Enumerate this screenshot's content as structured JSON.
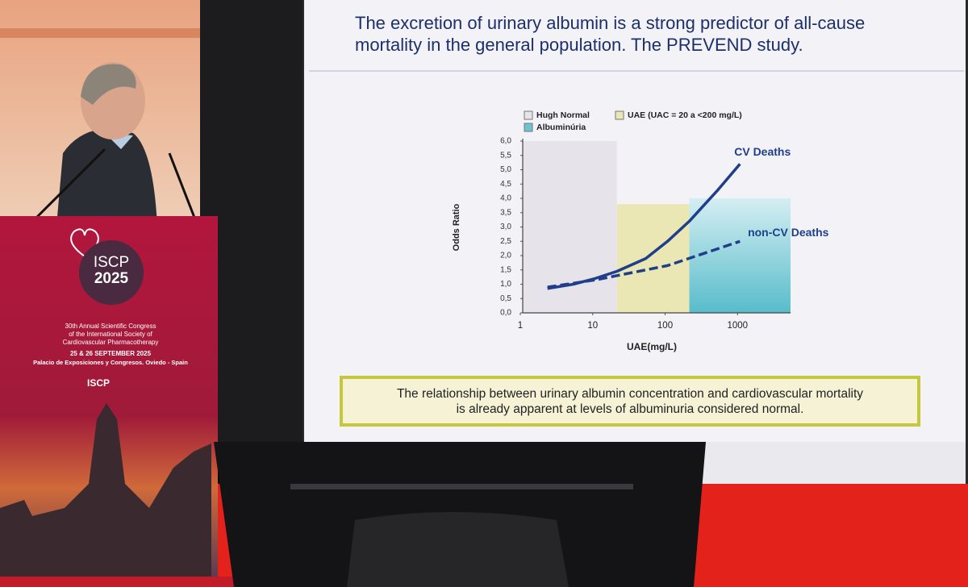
{
  "slide": {
    "title_lines": [
      "The excretion of urinary albumin is a strong predictor of all-cause",
      "mortality in the general population. The PREVEND study."
    ],
    "note_lines": [
      "The relationship between urinary albumin concentration and cardiovascular mortality",
      "is already apparent at levels of albuminuria considered normal."
    ]
  },
  "chart_data": {
    "type": "line",
    "x_label": "UAE(mg/L)",
    "y_label": "Odds Ratio",
    "xscale": "log",
    "xlim": [
      1,
      5000
    ],
    "xticks": [
      1,
      10,
      100,
      1000
    ],
    "ylim": [
      0,
      6
    ],
    "yticks": [
      {
        "value": 0,
        "label": "0,0"
      },
      {
        "value": 0.5,
        "label": "0,5"
      },
      {
        "value": 1,
        "label": "1,0"
      },
      {
        "value": 1.5,
        "label": "1,5"
      },
      {
        "value": 2,
        "label": "2,0"
      },
      {
        "value": 2.5,
        "label": "2,5"
      },
      {
        "value": 3,
        "label": "3,0"
      },
      {
        "value": 3.5,
        "label": "3,5"
      },
      {
        "value": 4,
        "label": "4,0"
      },
      {
        "value": 4.5,
        "label": "4,5"
      },
      {
        "value": 5,
        "label": "5,0"
      },
      {
        "value": 5.5,
        "label": "5,5"
      },
      {
        "value": 6,
        "label": "6,0"
      }
    ],
    "bands": [
      {
        "name": "Hugh Normal",
        "color": "#e6e3ea",
        "x": [
          1,
          20
        ],
        "top": 6
      },
      {
        "name": "UAE (UAC = 20 a <200 mg/L)",
        "color": "#ebe7b4",
        "x": [
          20,
          200
        ],
        "top": 3.8
      },
      {
        "name": "Albuminúria",
        "color": "#6cc3d1",
        "x": [
          200,
          5000
        ],
        "top": 4
      }
    ],
    "series": [
      {
        "name": "CV Deaths",
        "color": "#1f3f8a",
        "dash": false,
        "x": [
          2.2,
          5,
          10,
          20,
          50,
          100,
          200,
          500,
          1000
        ],
        "values": [
          0.85,
          1.0,
          1.2,
          1.45,
          1.9,
          2.5,
          3.2,
          4.3,
          5.2
        ]
      },
      {
        "name": "non-CV Deaths",
        "color": "#1f3f8a",
        "dash": true,
        "x": [
          2.2,
          10,
          100,
          1000
        ],
        "values": [
          0.9,
          1.15,
          1.65,
          2.5
        ]
      }
    ]
  },
  "podium": {
    "logo_lines": [
      "ISCP",
      "2025"
    ],
    "lines": [
      "30th Annual Scientific Congress",
      "of the International Society of",
      "Cardiovascular Pharmacotherapy"
    ],
    "date": "25 & 26 SEPTEMBER 2025",
    "venue": "Palacio de Exposiciones y Congresos. Oviedo - Spain",
    "footer_logo": "ISCP"
  }
}
